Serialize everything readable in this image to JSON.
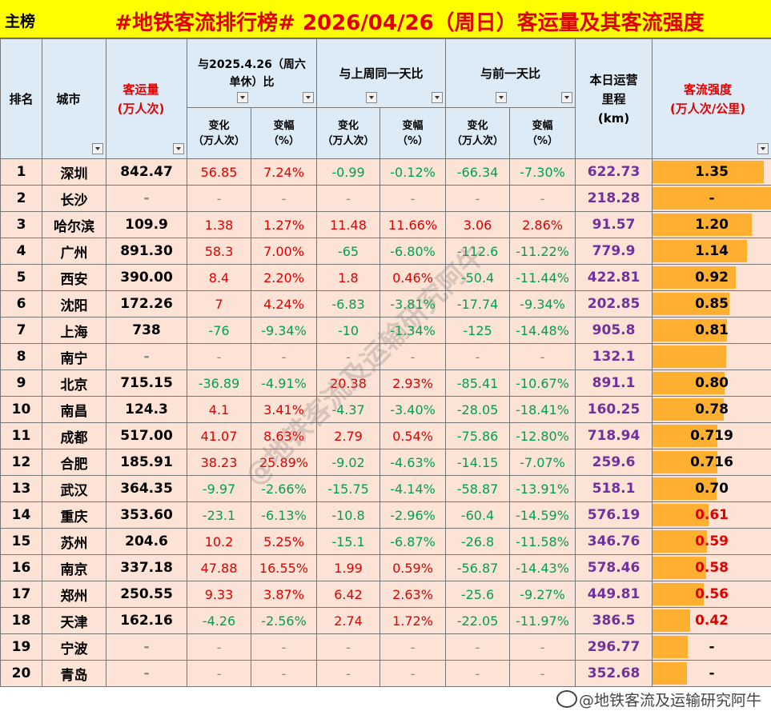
{
  "header": {
    "tag": "主榜",
    "title": "#地铁客流排行榜# 2026/04/26（周日）客运量及其客流强度"
  },
  "columns": {
    "rank": "排名",
    "city": "城市",
    "volume": "客运量\n(万人次)",
    "yoy": "与2025.4.26（周六\n单休）比",
    "wow": "与上周同一天比",
    "dod": "与前一天比",
    "change": "变化\n（万人次）",
    "pct": "变幅\n（%）",
    "mileage": "本日运营\n里程\n(km)",
    "intensity": "客流强度\n(万人次/公里)"
  },
  "colors": {
    "accent": "#ffb030",
    "header_bg": "#ddebf7",
    "row_bg": "#fde3d6",
    "title_bg": "#ffff00"
  },
  "rows": [
    {
      "rank": "1",
      "city": "深圳",
      "volume": "842.47",
      "yoy_c": "56.85",
      "yoy_p": "7.24%",
      "wow_c": "-0.99",
      "wow_p": "-0.12%",
      "dod_c": "-66.34",
      "dod_p": "-7.30%",
      "mileage": "622.73",
      "intensity": "1.35",
      "level": 0.94
    },
    {
      "rank": "2",
      "city": "长沙",
      "volume": "-",
      "yoy_c": "-",
      "yoy_p": "-",
      "wow_c": "-",
      "wow_p": "-",
      "dod_c": "-",
      "dod_p": "-",
      "mileage": "218.28",
      "intensity": "-",
      "level": 1.0
    },
    {
      "rank": "3",
      "city": "哈尔滨",
      "volume": "109.9",
      "yoy_c": "1.38",
      "yoy_p": "1.27%",
      "wow_c": "11.48",
      "wow_p": "11.66%",
      "dod_c": "3.06",
      "dod_p": "2.86%",
      "mileage": "91.57",
      "intensity": "1.20",
      "level": 0.84
    },
    {
      "rank": "4",
      "city": "广州",
      "volume": "891.30",
      "yoy_c": "58.3",
      "yoy_p": "7.00%",
      "wow_c": "-65",
      "wow_p": "-6.80%",
      "dod_c": "-112.6",
      "dod_p": "-11.22%",
      "mileage": "779.9",
      "intensity": "1.14",
      "level": 0.8
    },
    {
      "rank": "5",
      "city": "西安",
      "volume": "390.00",
      "yoy_c": "8.4",
      "yoy_p": "2.20%",
      "wow_c": "1.8",
      "wow_p": "0.46%",
      "dod_c": "-50.4",
      "dod_p": "-11.44%",
      "mileage": "422.81",
      "intensity": "0.92",
      "level": 0.7
    },
    {
      "rank": "6",
      "city": "沈阳",
      "volume": "172.26",
      "yoy_c": "7",
      "yoy_p": "4.24%",
      "wow_c": "-6.83",
      "wow_p": "-3.81%",
      "dod_c": "-17.74",
      "dod_p": "-9.34%",
      "mileage": "202.85",
      "intensity": "0.85",
      "level": 0.65
    },
    {
      "rank": "7",
      "city": "上海",
      "volume": "738",
      "yoy_c": "-76",
      "yoy_p": "-9.34%",
      "wow_c": "-10",
      "wow_p": "-1.34%",
      "dod_c": "-125",
      "dod_p": "-14.48%",
      "mileage": "905.8",
      "intensity": "0.81",
      "level": 0.63
    },
    {
      "rank": "8",
      "city": "南宁",
      "volume": "-",
      "yoy_c": "-",
      "yoy_p": "-",
      "wow_c": "-",
      "wow_p": "-",
      "dod_c": "-",
      "dod_p": "-",
      "mileage": "132.1",
      "intensity": "",
      "level": 0.62
    },
    {
      "rank": "9",
      "city": "北京",
      "volume": "715.15",
      "yoy_c": "-36.89",
      "yoy_p": "-4.91%",
      "wow_c": "20.38",
      "wow_p": "2.93%",
      "dod_c": "-85.41",
      "dod_p": "-10.67%",
      "mileage": "891.1",
      "intensity": "0.80",
      "level": 0.61
    },
    {
      "rank": "10",
      "city": "南昌",
      "volume": "124.3",
      "yoy_c": "4.1",
      "yoy_p": "3.41%",
      "wow_c": "-4.37",
      "wow_p": "-3.40%",
      "dod_c": "-28.05",
      "dod_p": "-18.41%",
      "mileage": "160.25",
      "intensity": "0.78",
      "level": 0.6
    },
    {
      "rank": "11",
      "city": "成都",
      "volume": "517.00",
      "yoy_c": "41.07",
      "yoy_p": "8.63%",
      "wow_c": "2.79",
      "wow_p": "0.54%",
      "dod_c": "-75.86",
      "dod_p": "-12.80%",
      "mileage": "718.94",
      "intensity": "0.719",
      "level": 0.55
    },
    {
      "rank": "12",
      "city": "合肥",
      "volume": "185.91",
      "yoy_c": "38.23",
      "yoy_p": "25.89%",
      "wow_c": "-9.02",
      "wow_p": "-4.63%",
      "dod_c": "-14.15",
      "dod_p": "-7.07%",
      "mileage": "259.6",
      "intensity": "0.716",
      "level": 0.55
    },
    {
      "rank": "13",
      "city": "武汉",
      "volume": "364.35",
      "yoy_c": "-9.97",
      "yoy_p": "-2.66%",
      "wow_c": "-15.75",
      "wow_p": "-4.14%",
      "dod_c": "-58.87",
      "dod_p": "-13.91%",
      "mileage": "518.1",
      "intensity": "0.70",
      "level": 0.54
    },
    {
      "rank": "14",
      "city": "重庆",
      "volume": "353.60",
      "yoy_c": "-23.1",
      "yoy_p": "-6.13%",
      "wow_c": "-10.8",
      "wow_p": "-2.96%",
      "dod_c": "-60.4",
      "dod_p": "-14.59%",
      "mileage": "576.19",
      "intensity": "0.61",
      "level": 0.47
    },
    {
      "rank": "15",
      "city": "苏州",
      "volume": "204.6",
      "yoy_c": "10.2",
      "yoy_p": "5.25%",
      "wow_c": "-15.1",
      "wow_p": "-6.87%",
      "dod_c": "-26.8",
      "dod_p": "-11.58%",
      "mileage": "346.76",
      "intensity": "0.59",
      "level": 0.46
    },
    {
      "rank": "16",
      "city": "南京",
      "volume": "337.18",
      "yoy_c": "47.88",
      "yoy_p": "16.55%",
      "wow_c": "1.99",
      "wow_p": "0.59%",
      "dod_c": "-56.87",
      "dod_p": "-14.43%",
      "mileage": "578.46",
      "intensity": "0.58",
      "level": 0.45
    },
    {
      "rank": "17",
      "city": "郑州",
      "volume": "250.55",
      "yoy_c": "9.33",
      "yoy_p": "3.87%",
      "wow_c": "6.42",
      "wow_p": "2.63%",
      "dod_c": "-25.6",
      "dod_p": "-9.27%",
      "mileage": "449.81",
      "intensity": "0.56",
      "level": 0.43
    },
    {
      "rank": "18",
      "city": "天津",
      "volume": "162.16",
      "yoy_c": "-4.26",
      "yoy_p": "-2.56%",
      "wow_c": "2.74",
      "wow_p": "1.72%",
      "dod_c": "-22.05",
      "dod_p": "-11.97%",
      "mileage": "386.5",
      "intensity": "0.42",
      "level": 0.32
    },
    {
      "rank": "19",
      "city": "宁波",
      "volume": "-",
      "yoy_c": "-",
      "yoy_p": "-",
      "wow_c": "-",
      "wow_p": "-",
      "dod_c": "-",
      "dod_p": "-",
      "mileage": "296.77",
      "intensity": "-",
      "level": 0.3
    },
    {
      "rank": "20",
      "city": "青岛",
      "volume": "-",
      "yoy_c": "-",
      "yoy_p": "-",
      "wow_c": "-",
      "wow_p": "-",
      "dod_c": "-",
      "dod_p": "-",
      "mileage": "352.68",
      "intensity": "-",
      "level": 0.29
    }
  ],
  "credit": "@地铁客流及运输研究阿牛",
  "watermark": "@地铁客流及运输研究阿牛"
}
